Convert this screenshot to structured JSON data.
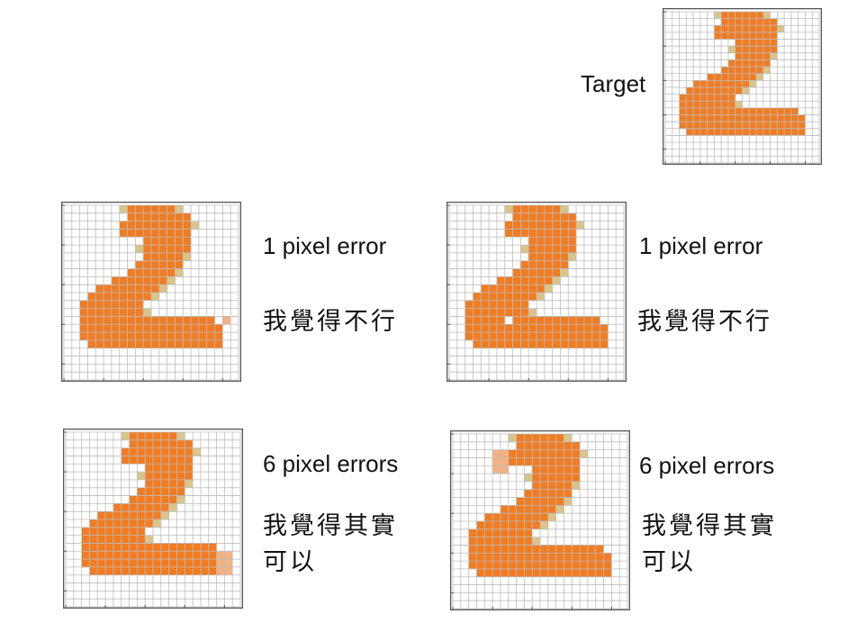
{
  "target": {
    "label": "Target"
  },
  "colors": {
    "fill": "#f07c23",
    "edge": "#d9c48a",
    "error": "#f4b183",
    "grid": "#bdbdbd",
    "frame": "#555555"
  },
  "panels": [
    {
      "id": "target",
      "errors": []
    },
    {
      "id": "top-left",
      "caption": "1 pixel error",
      "comment_lines": [
        "我覺得不行"
      ],
      "errors": [
        {
          "cells": [
            [
              20,
              14
            ]
          ],
          "color": "#f4b183"
        }
      ]
    },
    {
      "id": "top-right",
      "caption": "1 pixel error",
      "comment_lines": [
        "我覺得不行"
      ],
      "errors": [
        {
          "cells": [
            [
              7,
              14
            ]
          ],
          "color": "#ffffff"
        }
      ]
    },
    {
      "id": "bottom-left",
      "caption": "6 pixel errors",
      "comment_lines": [
        "我覺得其實",
        "可以"
      ],
      "errors": [
        {
          "cells": [
            [
              19,
              15
            ],
            [
              20,
              15
            ],
            [
              19,
              16
            ],
            [
              20,
              16
            ],
            [
              19,
              17
            ],
            [
              20,
              17
            ]
          ],
          "color": "#f4b183"
        }
      ]
    },
    {
      "id": "bottom-right",
      "caption": "6 pixel errors",
      "comment_lines": [
        "我覺得其實",
        "可以"
      ],
      "errors": [
        {
          "cells": [
            [
              5,
              2
            ],
            [
              6,
              2
            ],
            [
              5,
              3
            ],
            [
              6,
              3
            ],
            [
              5,
              4
            ],
            [
              6,
              4
            ]
          ],
          "color": "#f4b183"
        }
      ]
    }
  ]
}
